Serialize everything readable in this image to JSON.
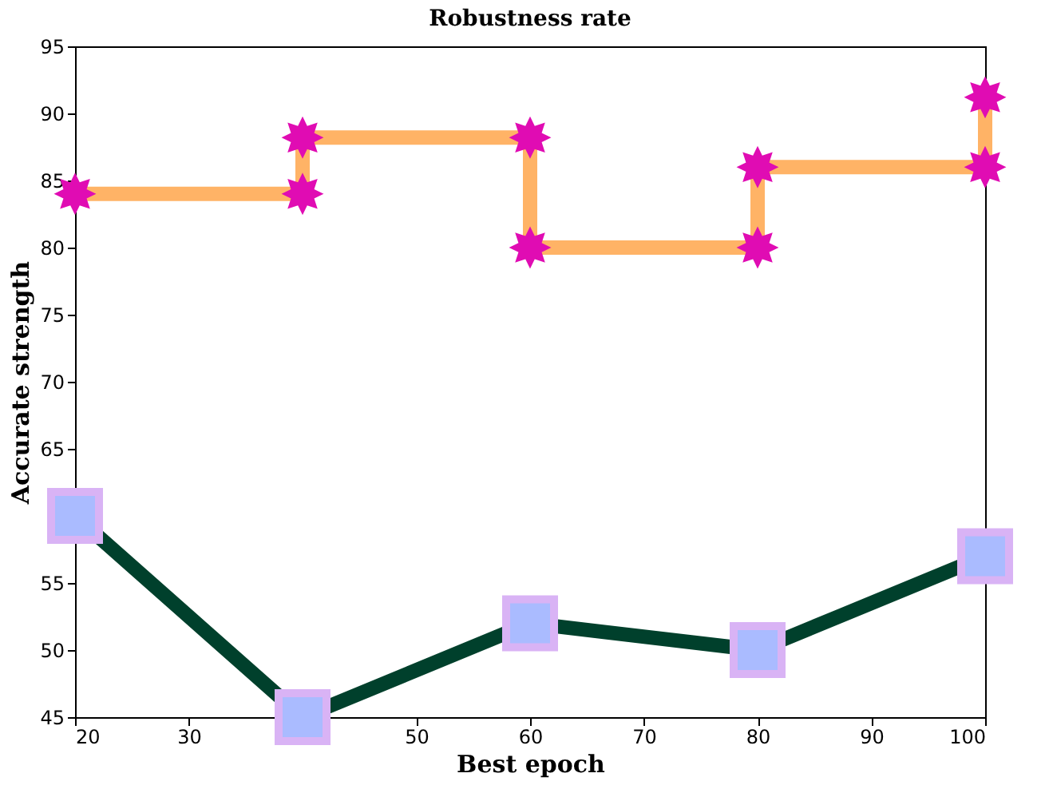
{
  "chart_data": {
    "type": "line",
    "title": "Robustness rate",
    "xlabel": "Best epoch",
    "ylabel": "Accurate strength",
    "xlim": [
      20,
      100
    ],
    "xticks": [
      20,
      30,
      {
        "value": 40,
        "label": null
      },
      50,
      60,
      70,
      80,
      90,
      100
    ],
    "ylim": [
      45,
      95
    ],
    "yticks": [
      45,
      50,
      55,
      {
        "value": 60,
        "label": null
      },
      65,
      70,
      75,
      80,
      85,
      90,
      95
    ],
    "grid": false,
    "series": [
      {
        "color": "#ffb366",
        "marker": "star",
        "colors": [
          "#e00cb3",
          "#e00cb3",
          "#e00cb3",
          "#e00cb3",
          "#e00cb3",
          "#e00cb3",
          "#e00cb3",
          "#e00cb3",
          "#e00cb3"
        ],
        "x": [
          20,
          40,
          40,
          60,
          60,
          80,
          80,
          100,
          100
        ],
        "values": [
          84,
          84,
          88.2,
          88.2,
          80,
          80,
          86,
          86,
          91.2
        ]
      },
      {
        "color": "#00402c",
        "marker": "square",
        "colors": [
          "#aabbff",
          "#aabbff",
          "#aabbff",
          "#aabbff",
          "#aabbff"
        ],
        "x": [
          20,
          40,
          60,
          80,
          100
        ],
        "values": [
          60,
          45,
          52,
          50,
          57
        ]
      }
    ]
  }
}
